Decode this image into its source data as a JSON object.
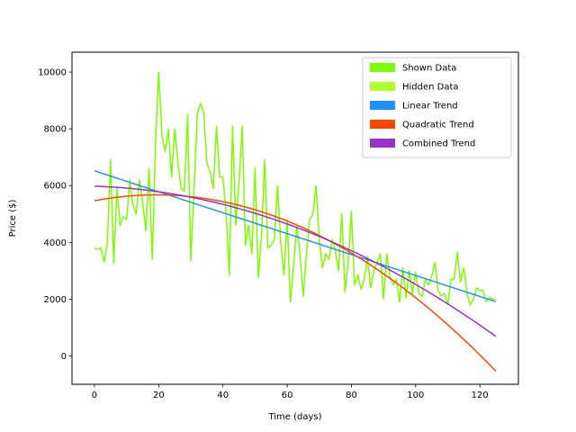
{
  "chart_data": {
    "type": "line",
    "xlabel": "Time (days)",
    "ylabel": "Price ($)",
    "xlim": [
      -7,
      132
    ],
    "ylim": [
      -1000,
      10700
    ],
    "xticks": [
      0,
      20,
      40,
      60,
      80,
      100,
      120
    ],
    "yticks": [
      0,
      2000,
      4000,
      6000,
      8000,
      10000
    ],
    "legend_position": "top-right",
    "grid": false,
    "series": [
      {
        "name": "Shown Data",
        "color": "#7CFC00",
        "kind": "line",
        "x": [
          0,
          1,
          2,
          3,
          4,
          5,
          6,
          7,
          8,
          9,
          10,
          11,
          12,
          13,
          14,
          15,
          16,
          17,
          18,
          19,
          20,
          21,
          22,
          23,
          24,
          25,
          26,
          27,
          28,
          29,
          30,
          31,
          32,
          33,
          34,
          35,
          36,
          37,
          38,
          39,
          40,
          41,
          42,
          43,
          44,
          45,
          46,
          47,
          48,
          49,
          50,
          51,
          52,
          53,
          54,
          55,
          56,
          57,
          58,
          59,
          60,
          61,
          62,
          63,
          64,
          65,
          66,
          67,
          68,
          69,
          70,
          71,
          72,
          73,
          74,
          75,
          76,
          77,
          78,
          79,
          80,
          81,
          82,
          83,
          84,
          85,
          86,
          87,
          88,
          89,
          90,
          91,
          92,
          93,
          94,
          95,
          96,
          97,
          98,
          99,
          100,
          101,
          102,
          103,
          104,
          105,
          106,
          107,
          108,
          109,
          110,
          111,
          112,
          113,
          114,
          115,
          116,
          117,
          118,
          119,
          120,
          121,
          122,
          123,
          124,
          125
        ],
        "y": [
          3800,
          3750,
          3800,
          3300,
          4000,
          6900,
          3250,
          5900,
          4600,
          4900,
          4800,
          6200,
          5300,
          5000,
          6200,
          5400,
          4400,
          6600,
          3400,
          7500,
          10000,
          7800,
          7200,
          8000,
          6300,
          8000,
          6800,
          5900,
          5800,
          8500,
          3350,
          5900,
          8500,
          8900,
          8600,
          6800,
          6500,
          5900,
          8100,
          6300,
          6300,
          5000,
          2850,
          8100,
          4600,
          6100,
          8100,
          3900,
          4600,
          3600,
          6600,
          2750,
          4200,
          6900,
          3800,
          3900,
          4100,
          6000,
          4000,
          2850,
          4800,
          1900,
          3200,
          4600,
          3600,
          2100,
          3600,
          4800,
          5000,
          6000,
          4100,
          3100,
          3600,
          3400,
          4100,
          3700,
          3000,
          5000,
          2250,
          3300,
          5100,
          2500,
          2850,
          2350,
          2700,
          3500,
          2400,
          3000,
          3300,
          3600,
          2000,
          3600,
          2800,
          2500,
          2700,
          1900,
          3100,
          2050,
          3000,
          2200,
          2950,
          2200,
          2100,
          2700,
          2500,
          2800,
          3300,
          2300,
          2100,
          2200,
          1800,
          2700,
          2700,
          3650,
          2600,
          3100,
          2200,
          1800,
          2000,
          2400,
          2300,
          2300,
          1900,
          2050,
          2000,
          2000
        ]
      },
      {
        "name": "Hidden Data",
        "color": "#ADFF2F",
        "kind": "line",
        "x": [],
        "y": []
      },
      {
        "name": "Linear Trend",
        "color": "#1E90FF",
        "kind": "linear",
        "x": [
          0,
          125
        ],
        "y": [
          6520,
          1910
        ]
      },
      {
        "name": "Quadratic Trend",
        "color": "#FF4500",
        "kind": "quadratic",
        "x": [
          0,
          25,
          50,
          75,
          100,
          125
        ],
        "y": [
          5430,
          5700,
          5200,
          3900,
          2000,
          -500
        ]
      },
      {
        "name": "Combined Trend",
        "color": "#9932CC",
        "kind": "quadratic",
        "x": [
          0,
          25,
          50,
          75,
          100,
          125
        ],
        "y": [
          5970,
          5700,
          5050,
          3950,
          2500,
          700
        ]
      }
    ]
  }
}
